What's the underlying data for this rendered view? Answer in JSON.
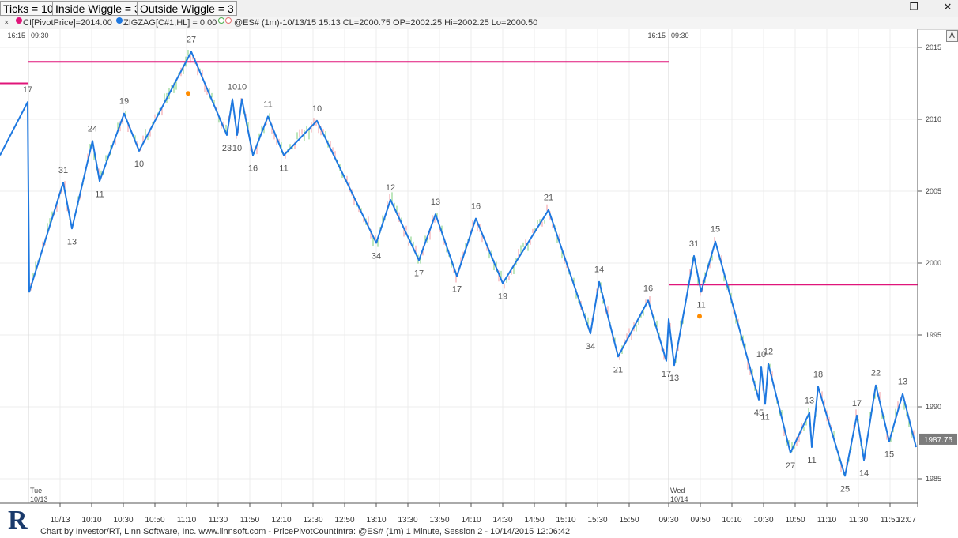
{
  "tabs": [
    "Ticks = 10",
    "Inside Wiggle = 3",
    "Outside Wiggle = 3"
  ],
  "window_controls": {
    "restore_icon": "restore-icon",
    "close_icon": "close-icon"
  },
  "legend": {
    "close_glyph": "×",
    "pivot_label": "CI[PivotPrice]=2014.00",
    "zigzag_label": "ZIGZAG[C#1,HL] = 0.00",
    "quote_label": "@ES# (1m)-10/13/15 15:13 CL=2000.75 OP=2002.25 Hi=2002.25 Lo=2000.50"
  },
  "autoscale_button": "A",
  "footer": {
    "logo_letter": "R",
    "text": "Chart by Investor/RT, Linn Software, Inc. www.linnsoft.com - PricePivotCountIntra: @ES# (1m) 1 Minute, Session 2 - 10/14/2015 12:06:42"
  },
  "colors": {
    "zigzag": "#1e78e0",
    "pivot_line": "#e0157a",
    "marker": "#ff8c00",
    "up_bar": "#7ccf7c",
    "down_bar": "#f09aa0",
    "grid": "#ececec"
  },
  "chart_data": {
    "type": "line",
    "price_axis": {
      "ticks": [
        1985,
        1990,
        1995,
        2000,
        2005,
        2010,
        2015
      ],
      "current_price": "1987.75"
    },
    "time_axis": {
      "labels": [
        "10/13",
        "10:10",
        "10:30",
        "10:50",
        "11:10",
        "11:30",
        "11:50",
        "12:10",
        "12:30",
        "12:50",
        "13:10",
        "13:30",
        "13:50",
        "14:10",
        "14:30",
        "14:50",
        "15:10",
        "15:30",
        "15:50",
        "09:30",
        "09:50",
        "10:10",
        "10:30",
        "10:50",
        "11:10",
        "11:30",
        "11:50",
        "12:07"
      ],
      "session_labels": [
        {
          "top": "16:15",
          "bottom": "09:30"
        },
        {
          "top": "16:15",
          "bottom": "09:30"
        }
      ],
      "day_labels": [
        {
          "day": "Tue",
          "date": "10/13"
        },
        {
          "day": "Wed",
          "date": "10/14"
        }
      ]
    },
    "pivot_lines": [
      {
        "price": 2012.5,
        "from": "10/12 16:15",
        "to": "10/13 09:30"
      },
      {
        "price": 2014.0,
        "from": "10/13 09:30",
        "to": "10/13 16:15"
      },
      {
        "price": 1998.5,
        "from": "10/14 09:30",
        "to": "10/14 12:07"
      }
    ],
    "markers": [
      {
        "t": 238,
        "price": 2011.8
      },
      {
        "t": 885,
        "price": 1996.3
      }
    ],
    "zigzag": [
      {
        "t": 0,
        "price": 2007.5,
        "label": ""
      },
      {
        "t": 35,
        "price": 2011.2,
        "label": "17"
      },
      {
        "t": 37,
        "price": 1998.0,
        "label": ""
      },
      {
        "t": 80,
        "price": 2005.6,
        "label": "31"
      },
      {
        "t": 91,
        "price": 2002.4,
        "label": "13"
      },
      {
        "t": 117,
        "price": 2008.5,
        "label": "24"
      },
      {
        "t": 126,
        "price": 2005.7,
        "label": "11"
      },
      {
        "t": 157,
        "price": 2010.4,
        "label": "19"
      },
      {
        "t": 176,
        "price": 2007.8,
        "label": "10"
      },
      {
        "t": 242,
        "price": 2014.7,
        "label": "27"
      },
      {
        "t": 287,
        "price": 2008.9,
        "label": "23"
      },
      {
        "t": 294,
        "price": 2011.4,
        "label": "10"
      },
      {
        "t": 300,
        "price": 2008.9,
        "label": "10"
      },
      {
        "t": 306,
        "price": 2011.4,
        "label": "10"
      },
      {
        "t": 320,
        "price": 2007.5,
        "label": "16"
      },
      {
        "t": 339,
        "price": 2010.2,
        "label": "11"
      },
      {
        "t": 359,
        "price": 2007.5,
        "label": "11"
      },
      {
        "t": 401,
        "price": 2009.9,
        "label": "10"
      },
      {
        "t": 476,
        "price": 2001.4,
        "label": "34"
      },
      {
        "t": 494,
        "price": 2004.4,
        "label": "12"
      },
      {
        "t": 530,
        "price": 2000.2,
        "label": "17"
      },
      {
        "t": 551,
        "price": 2003.4,
        "label": "13"
      },
      {
        "t": 578,
        "price": 1999.1,
        "label": "17"
      },
      {
        "t": 602,
        "price": 2003.1,
        "label": "16"
      },
      {
        "t": 636,
        "price": 1998.6,
        "label": "19"
      },
      {
        "t": 694,
        "price": 2003.7,
        "label": "21"
      },
      {
        "t": 747,
        "price": 1995.1,
        "label": "34"
      },
      {
        "t": 758,
        "price": 1998.7,
        "label": "14"
      },
      {
        "t": 782,
        "price": 1993.5,
        "label": "21"
      },
      {
        "t": 820,
        "price": 1997.4,
        "label": "16"
      },
      {
        "t": 843,
        "price": 1993.2,
        "label": "17"
      },
      {
        "t": 846,
        "price": 1996.1,
        "label": ""
      },
      {
        "t": 853,
        "price": 1992.9,
        "label": "13"
      },
      {
        "t": 878,
        "price": 2000.5,
        "label": "31"
      },
      {
        "t": 887,
        "price": 1998.0,
        "label": "11"
      },
      {
        "t": 905,
        "price": 2001.5,
        "label": "15"
      },
      {
        "t": 960,
        "price": 1990.5,
        "label": "45"
      },
      {
        "t": 963,
        "price": 1992.8,
        "label": "10"
      },
      {
        "t": 968,
        "price": 1990.2,
        "label": "11"
      },
      {
        "t": 972,
        "price": 1993.0,
        "label": "12"
      },
      {
        "t": 1000,
        "price": 1986.8,
        "label": "27"
      },
      {
        "t": 1024,
        "price": 1989.6,
        "label": "13"
      },
      {
        "t": 1027,
        "price": 1987.2,
        "label": "11"
      },
      {
        "t": 1035,
        "price": 1991.4,
        "label": "18"
      },
      {
        "t": 1069,
        "price": 1985.2,
        "label": "25"
      },
      {
        "t": 1084,
        "price": 1989.4,
        "label": "17"
      },
      {
        "t": 1093,
        "price": 1986.3,
        "label": "14"
      },
      {
        "t": 1108,
        "price": 1991.5,
        "label": "22"
      },
      {
        "t": 1125,
        "price": 1987.6,
        "label": "15"
      },
      {
        "t": 1142,
        "price": 1990.9,
        "label": "13"
      },
      {
        "t": 1159,
        "price": 1987.2,
        "label": ""
      }
    ]
  }
}
